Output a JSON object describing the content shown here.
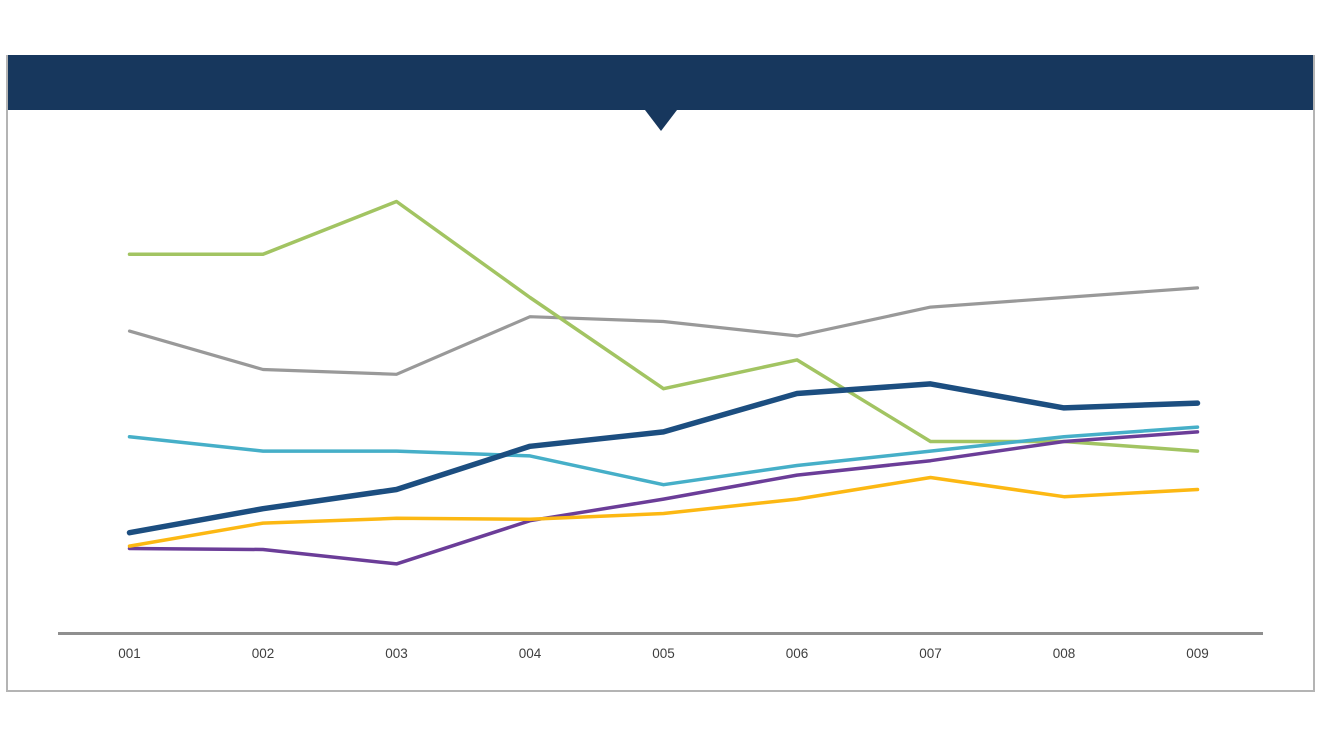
{
  "header": {
    "title": "",
    "bar_color": "#17375D",
    "notch_shape": "triangle-down"
  },
  "panel": {
    "background": "#FFFFFF",
    "border_color": "#B4B4B4"
  },
  "chart_data": {
    "type": "line",
    "title": "",
    "xlabel": "",
    "ylabel": "",
    "categories": [
      "001",
      "002",
      "003",
      "004",
      "005",
      "006",
      "007",
      "008",
      "009"
    ],
    "series": [
      {
        "name": "gray",
        "color": "#999999",
        "stroke_width": 3.2,
        "values": [
          63,
          55,
          54,
          66,
          65,
          62,
          68,
          70,
          72
        ]
      },
      {
        "name": "green",
        "color": "#A2C462",
        "stroke_width": 3.5,
        "values": [
          79,
          79,
          90,
          70,
          51,
          57,
          40,
          40,
          38
        ]
      },
      {
        "name": "teal",
        "color": "#46AFC8",
        "stroke_width": 3.5,
        "values": [
          41,
          38,
          38,
          37,
          31,
          35,
          38,
          41,
          43
        ]
      },
      {
        "name": "purple",
        "color": "#6B3D98",
        "stroke_width": 3.5,
        "values": [
          17.7,
          17.5,
          14.5,
          23.5,
          28,
          33,
          36,
          40,
          42
        ]
      },
      {
        "name": "orange",
        "color": "#FCB813",
        "stroke_width": 3.5,
        "values": [
          18.2,
          23,
          24,
          23.8,
          25,
          28,
          32.5,
          28.5,
          30
        ]
      },
      {
        "name": "dark-blue",
        "color": "#1C4E80",
        "stroke_width": 5.5,
        "values": [
          21,
          26,
          30,
          39,
          42,
          50,
          52,
          47,
          48
        ]
      }
    ],
    "ylim": [
      0,
      100
    ],
    "y_axis_visible": false,
    "grid": false,
    "legend": "none",
    "x_axis": {
      "line_color": "#8F8F8F",
      "label_color": "#3F3F3F"
    }
  }
}
